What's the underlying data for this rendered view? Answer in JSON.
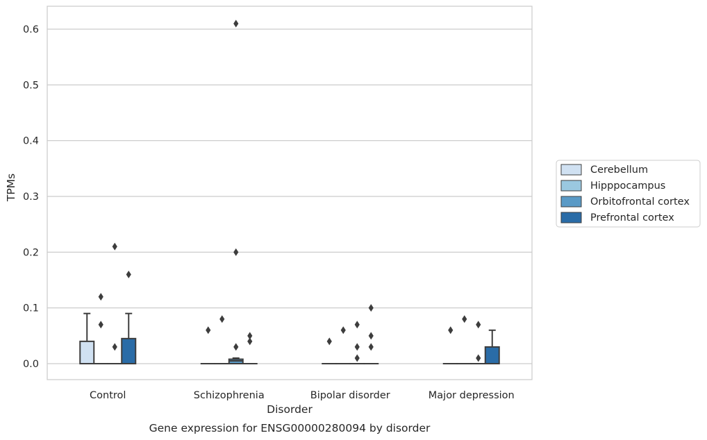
{
  "caption": "Gene expression for ENSG00000280094 by disorder",
  "chart_data": {
    "type": "box",
    "xlabel": "Disorder",
    "ylabel": "TPMs",
    "ylim": [
      -0.03,
      0.64
    ],
    "yticks": [
      0.0,
      0.1,
      0.2,
      0.3,
      0.4,
      0.5,
      0.6
    ],
    "ytick_labels": [
      "0.0",
      "0.1",
      "0.2",
      "0.3",
      "0.4",
      "0.5",
      "0.6"
    ],
    "grid": true,
    "legend_position": "right",
    "categories": [
      "Control",
      "Schizophrenia",
      "Bipolar disorder",
      "Major depression"
    ],
    "series": [
      {
        "name": "Cerebellum",
        "color": "#d0e1f2",
        "boxes": [
          {
            "q1": 0.0,
            "median": 0.0,
            "q3": 0.04,
            "whisker_low": 0.0,
            "whisker_high": 0.09,
            "outliers": []
          },
          {
            "q1": 0.0,
            "median": 0.0,
            "q3": 0.0,
            "whisker_low": 0.0,
            "whisker_high": 0.0,
            "outliers": [
              0.06
            ]
          },
          {
            "q1": 0.0,
            "median": 0.0,
            "q3": 0.0,
            "whisker_low": 0.0,
            "whisker_high": 0.0,
            "outliers": [
              0.04
            ]
          },
          {
            "q1": 0.0,
            "median": 0.0,
            "q3": 0.0,
            "whisker_low": 0.0,
            "whisker_high": 0.0,
            "outliers": [
              0.06
            ]
          }
        ]
      },
      {
        "name": "Hipppocampus",
        "color": "#9ac8e0",
        "boxes": [
          {
            "q1": 0.0,
            "median": 0.0,
            "q3": 0.0,
            "whisker_low": 0.0,
            "whisker_high": 0.0,
            "outliers": [
              0.07,
              0.12
            ]
          },
          {
            "q1": 0.0,
            "median": 0.0,
            "q3": 0.0,
            "whisker_low": 0.0,
            "whisker_high": 0.0,
            "outliers": [
              0.08
            ]
          },
          {
            "q1": 0.0,
            "median": 0.0,
            "q3": 0.0,
            "whisker_low": 0.0,
            "whisker_high": 0.0,
            "outliers": [
              0.06
            ]
          },
          {
            "q1": 0.0,
            "median": 0.0,
            "q3": 0.0,
            "whisker_low": 0.0,
            "whisker_high": 0.0,
            "outliers": [
              0.08
            ]
          }
        ]
      },
      {
        "name": "Orbitofrontal cortex",
        "color": "#5a9ac6",
        "boxes": [
          {
            "q1": 0.0,
            "median": 0.0,
            "q3": 0.0,
            "whisker_low": 0.0,
            "whisker_high": 0.0,
            "outliers": [
              0.03,
              0.21
            ]
          },
          {
            "q1": 0.0,
            "median": 0.005,
            "q3": 0.008,
            "whisker_low": 0.0,
            "whisker_high": 0.01,
            "outliers": [
              0.03,
              0.2,
              0.61
            ]
          },
          {
            "q1": 0.0,
            "median": 0.0,
            "q3": 0.0,
            "whisker_low": 0.0,
            "whisker_high": 0.0,
            "outliers": [
              0.01,
              0.03,
              0.07
            ]
          },
          {
            "q1": 0.0,
            "median": 0.0,
            "q3": 0.0,
            "whisker_low": 0.0,
            "whisker_high": 0.0,
            "outliers": [
              0.01,
              0.07
            ]
          }
        ]
      },
      {
        "name": "Prefrontal cortex",
        "color": "#2a6ca7",
        "boxes": [
          {
            "q1": 0.0,
            "median": 0.0,
            "q3": 0.045,
            "whisker_low": 0.0,
            "whisker_high": 0.09,
            "outliers": [
              0.16
            ]
          },
          {
            "q1": 0.0,
            "median": 0.0,
            "q3": 0.0,
            "whisker_low": 0.0,
            "whisker_high": 0.0,
            "outliers": [
              0.04,
              0.05
            ]
          },
          {
            "q1": 0.0,
            "median": 0.0,
            "q3": 0.0,
            "whisker_low": 0.0,
            "whisker_high": 0.0,
            "outliers": [
              0.03,
              0.05,
              0.1
            ]
          },
          {
            "q1": 0.0,
            "median": 0.0,
            "q3": 0.03,
            "whisker_low": 0.0,
            "whisker_high": 0.06,
            "outliers": []
          }
        ]
      }
    ]
  }
}
